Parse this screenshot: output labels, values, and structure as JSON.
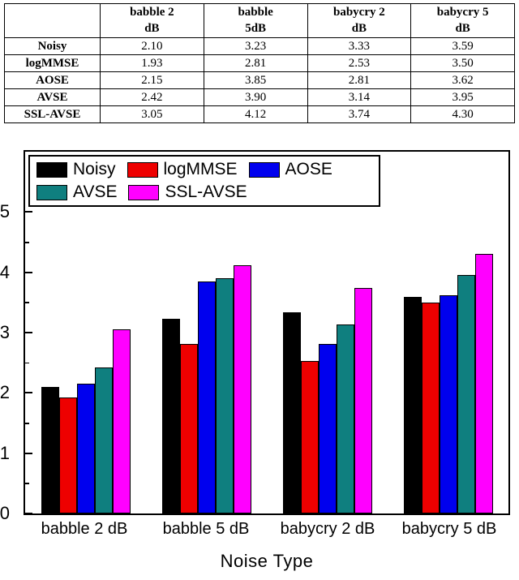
{
  "table": {
    "corner": "",
    "columns": [
      "babble 2\ndB",
      "babble\n5dB",
      "babycry 2\ndB",
      "babycry 5\ndB"
    ],
    "rows": [
      {
        "label": "Noisy",
        "values": [
          "2.10",
          "3.23",
          "3.33",
          "3.59"
        ]
      },
      {
        "label": "logMMSE",
        "values": [
          "1.93",
          "2.81",
          "2.53",
          "3.50"
        ]
      },
      {
        "label": "AOSE",
        "values": [
          "2.15",
          "3.85",
          "2.81",
          "3.62"
        ]
      },
      {
        "label": "AVSE",
        "values": [
          "2.42",
          "3.90",
          "3.14",
          "3.95"
        ]
      },
      {
        "label": "SSL-AVSE",
        "values": [
          "3.05",
          "4.12",
          "3.74",
          "4.30"
        ]
      }
    ]
  },
  "chart_data": {
    "type": "bar",
    "categories": [
      "babble 2 dB",
      "babble 5 dB",
      "babycry 2 dB",
      "babycry 5 dB"
    ],
    "series": [
      {
        "name": "Noisy",
        "color": "#000000",
        "values": [
          2.1,
          3.23,
          3.33,
          3.59
        ]
      },
      {
        "name": "logMMSE",
        "color": "#ee0000",
        "values": [
          1.93,
          2.81,
          2.53,
          3.5
        ]
      },
      {
        "name": "AOSE",
        "color": "#0000ee",
        "values": [
          2.15,
          3.85,
          2.81,
          3.62
        ]
      },
      {
        "name": "AVSE",
        "color": "#0f7f7f",
        "values": [
          2.42,
          3.9,
          3.14,
          3.95
        ]
      },
      {
        "name": "SSL-AVSE",
        "color": "#ff00ff",
        "values": [
          3.05,
          4.12,
          3.74,
          4.3
        ]
      }
    ],
    "title": "",
    "xlabel": "Noise Type",
    "ylabel": "",
    "ylim": [
      0,
      6
    ],
    "yticks": [
      0,
      1,
      2,
      3,
      4,
      5
    ],
    "minor_tick_step": 0.5,
    "legend_position": "top-left-inside",
    "grid": false
  }
}
